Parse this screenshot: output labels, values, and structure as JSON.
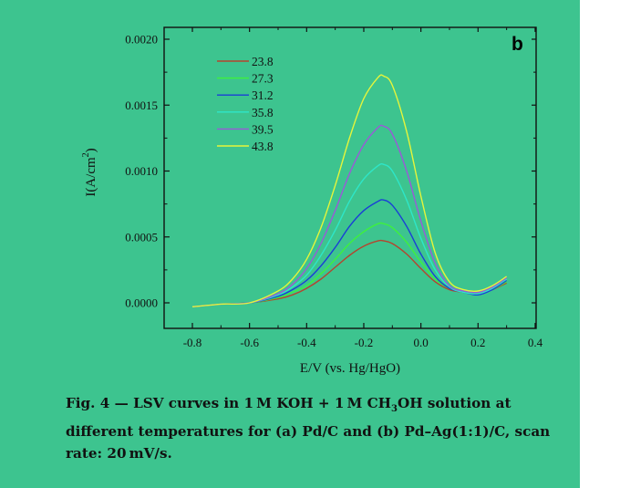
{
  "chart_data": {
    "type": "line",
    "panel_label": "b",
    "xlabel": "E/V (vs. Hg/HgO)",
    "ylabel": "I(A/cm",
    "ylabel_sup": "2",
    "ylabel_close": ")",
    "xlim": [
      -0.9,
      0.4
    ],
    "ylim": [
      -0.0002,
      0.0021
    ],
    "x_ticks": [
      -0.8,
      -0.6,
      -0.4,
      -0.2,
      0.0,
      0.2,
      0.4
    ],
    "x_tick_labels": [
      "-0.8",
      "-0.6",
      "-0.4",
      "-0.2",
      "0.0",
      "0.2",
      "0.4"
    ],
    "y_ticks": [
      0.0,
      0.0005,
      0.001,
      0.0015,
      0.002
    ],
    "y_tick_labels": [
      "0.0000",
      "0.0005",
      "0.0010",
      "0.0015",
      "0.0020"
    ],
    "grid": false,
    "legend_position": "top-left",
    "x": [
      -0.8,
      -0.7,
      -0.6,
      -0.5,
      -0.45,
      -0.4,
      -0.35,
      -0.3,
      -0.25,
      -0.2,
      -0.15,
      -0.13,
      -0.1,
      -0.05,
      0.0,
      0.05,
      0.1,
      0.15,
      0.2,
      0.25,
      0.3
    ],
    "series": [
      {
        "name": "23.8",
        "color": "#b5442e",
        "values": [
          -3e-05,
          -1e-05,
          0.0,
          3e-05,
          6e-05,
          0.00011,
          0.00018,
          0.00027,
          0.00036,
          0.00043,
          0.00047,
          0.00047,
          0.00045,
          0.00037,
          0.00026,
          0.00016,
          0.0001,
          8e-05,
          7e-05,
          0.0001,
          0.00015
        ]
      },
      {
        "name": "27.3",
        "color": "#3ef03e",
        "values": [
          -3e-05,
          -1e-05,
          0.0,
          4e-05,
          8e-05,
          0.00013,
          0.00022,
          0.00033,
          0.00045,
          0.00054,
          0.0006,
          0.0006,
          0.00057,
          0.00046,
          0.00031,
          0.00018,
          0.00011,
          8e-05,
          7e-05,
          0.0001,
          0.00016
        ]
      },
      {
        "name": "31.2",
        "color": "#1a3fd6",
        "values": [
          -3e-05,
          -1e-05,
          0.0,
          5e-05,
          0.0001,
          0.00017,
          0.00028,
          0.00042,
          0.00058,
          0.0007,
          0.00077,
          0.00078,
          0.00074,
          0.00058,
          0.00037,
          0.0002,
          0.00011,
          8e-05,
          6e-05,
          0.0001,
          0.00017
        ]
      },
      {
        "name": "35.8",
        "color": "#2ee6c8",
        "values": [
          -3e-05,
          -1e-05,
          0.0,
          6e-05,
          0.00012,
          0.00021,
          0.00036,
          0.00055,
          0.00077,
          0.00094,
          0.00104,
          0.00105,
          0.001,
          0.00078,
          0.00049,
          0.00025,
          0.00012,
          8e-05,
          7e-05,
          0.00011,
          0.00018
        ]
      },
      {
        "name": "39.5",
        "color": "#9a5ad8",
        "values": [
          -3e-05,
          -1e-05,
          0.0,
          7e-05,
          0.00014,
          0.00026,
          0.00045,
          0.0007,
          0.00098,
          0.0012,
          0.00133,
          0.00134,
          0.00128,
          0.001,
          0.00062,
          0.0003,
          0.00013,
          9e-05,
          8e-05,
          0.00012,
          0.00019
        ]
      },
      {
        "name": "43.8",
        "color": "#e6f53a",
        "values": [
          -3e-05,
          -1e-05,
          0.0,
          9e-05,
          0.00018,
          0.00033,
          0.00057,
          0.00089,
          0.00125,
          0.00155,
          0.00171,
          0.00172,
          0.00165,
          0.0013,
          0.00081,
          0.00038,
          0.00016,
          0.0001,
          9e-05,
          0.00013,
          0.0002
        ]
      }
    ]
  },
  "caption": {
    "part1": "Fig. 4 — LSV curves in 1 M KOH + 1 M CH",
    "sub": "3",
    "part2": "OH solution at different temperatures for (a) Pd/C and (b) Pd–Ag(1:1)/C, scan rate: 20 mV/s."
  }
}
